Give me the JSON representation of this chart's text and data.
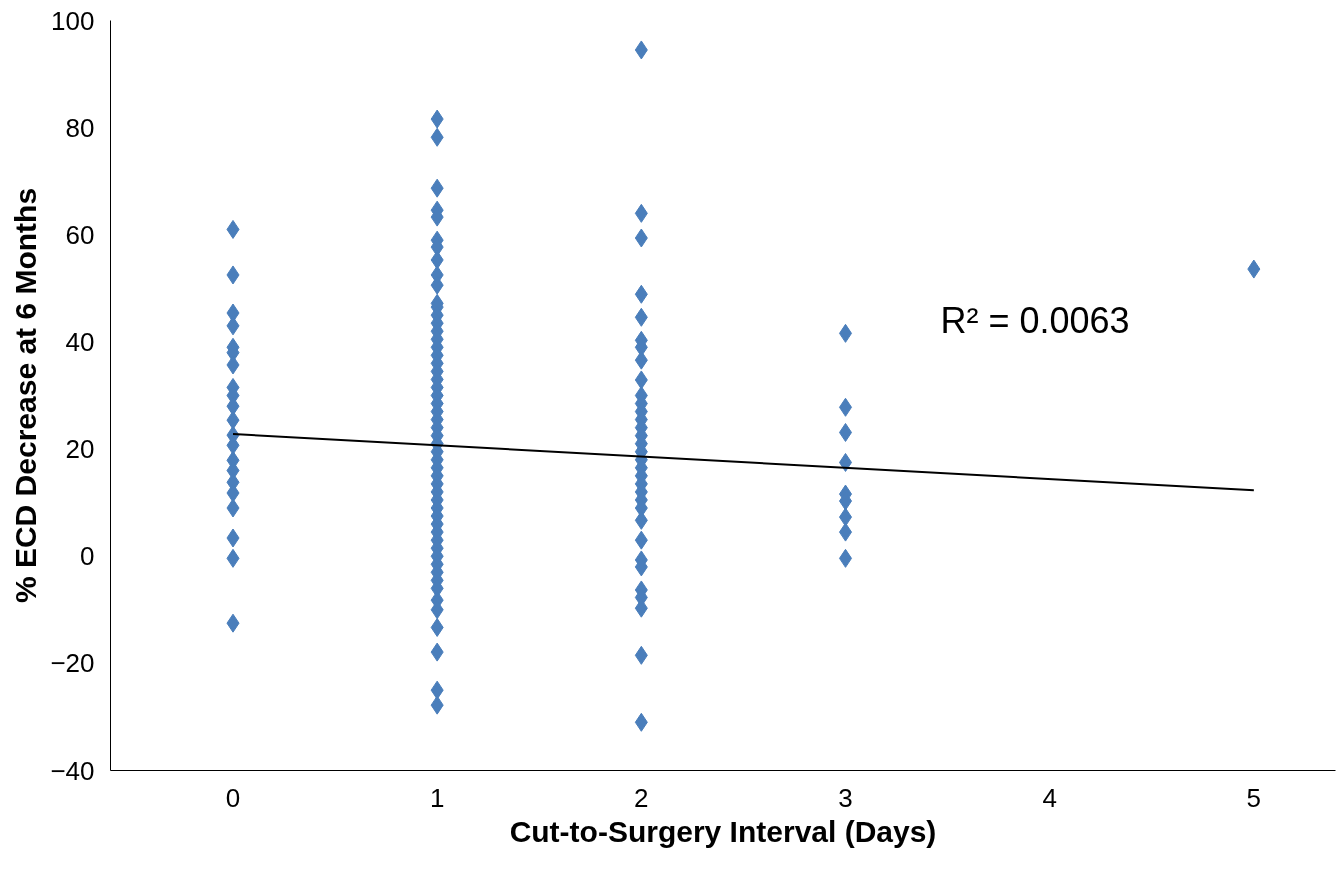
{
  "chart_data": {
    "type": "scatter",
    "xlabel": "Cut-to-Surgery Interval (Days)",
    "ylabel": "% ECD Decrease at 6 Months",
    "xlim": [
      -0.6,
      5.4
    ],
    "xticks": [
      0,
      1,
      2,
      3,
      4,
      5
    ],
    "ylim": [
      -40,
      100
    ],
    "yticks": [
      -40,
      -20,
      0,
      20,
      40,
      60,
      80,
      100
    ],
    "grid": false,
    "marker": "diamond",
    "series": [
      {
        "color": "#4a7ebb",
        "x": [
          0,
          0,
          0,
          0,
          0,
          0,
          0,
          0,
          0,
          0,
          0,
          0,
          0,
          0,
          0,
          0,
          0,
          0,
          0,
          0,
          0,
          1,
          1,
          1,
          1,
          1,
          1,
          1,
          1,
          1,
          1,
          1,
          1,
          1,
          1,
          1,
          1,
          1,
          1,
          1,
          1,
          1,
          1,
          1,
          1,
          1,
          1,
          1,
          1,
          1,
          1,
          1,
          1,
          1,
          1,
          1,
          1,
          1,
          1,
          1,
          1,
          1,
          1,
          1,
          1,
          1,
          1,
          1,
          1,
          1,
          1,
          1,
          1,
          1,
          2,
          2,
          2,
          2,
          2,
          2,
          2,
          2,
          2,
          2,
          2,
          2,
          2,
          2,
          2,
          2,
          2,
          2,
          2,
          2,
          2,
          2,
          2,
          2,
          2,
          2,
          2,
          2,
          2,
          2,
          2,
          2,
          2,
          3,
          3,
          3,
          3,
          3,
          3,
          3,
          3,
          3,
          5
        ],
        "values": [
          61,
          52.5,
          45.4,
          43,
          39,
          38,
          35.7,
          31.5,
          30,
          28,
          25.4,
          22.6,
          20.7,
          17.9,
          16,
          13.8,
          11.8,
          9,
          3.4,
          -0.4,
          -12.5,
          81.6,
          78.2,
          68.7,
          64.6,
          63.3,
          59,
          57.7,
          55.3,
          52.5,
          50.6,
          47.2,
          46.5,
          45,
          43.5,
          42,
          40.5,
          39,
          37.5,
          36,
          34.5,
          33,
          31.5,
          30,
          28.5,
          27,
          25.5,
          24,
          22.5,
          21,
          19.5,
          18,
          16.5,
          15,
          13.5,
          12,
          10.5,
          9,
          7.5,
          6,
          4.5,
          3,
          1.5,
          0,
          -1.5,
          -3,
          -4.5,
          -6,
          -8.2,
          -10,
          -13.3,
          -17.9,
          -25,
          -27.8,
          94.5,
          64,
          59.4,
          48.9,
          44.6,
          40.3,
          39,
          36.6,
          32.9,
          30,
          28.5,
          27,
          25.5,
          24,
          22.5,
          21,
          19.5,
          18,
          16.5,
          15,
          13.5,
          12,
          10.5,
          9,
          6.7,
          3,
          -0.7,
          -2,
          -6.3,
          -7.7,
          -9.7,
          -18.5,
          -31,
          41.6,
          27.8,
          23.1,
          17.5,
          11.6,
          10.3,
          7.3,
          4.5,
          -0.4,
          53.6
        ]
      },
      {
        "type": "line",
        "color": "#000000",
        "x": [
          0,
          5
        ],
        "values": [
          22.8,
          12.3
        ],
        "marker": "none"
      }
    ],
    "annotations": [
      "R² = 0.0063"
    ]
  }
}
